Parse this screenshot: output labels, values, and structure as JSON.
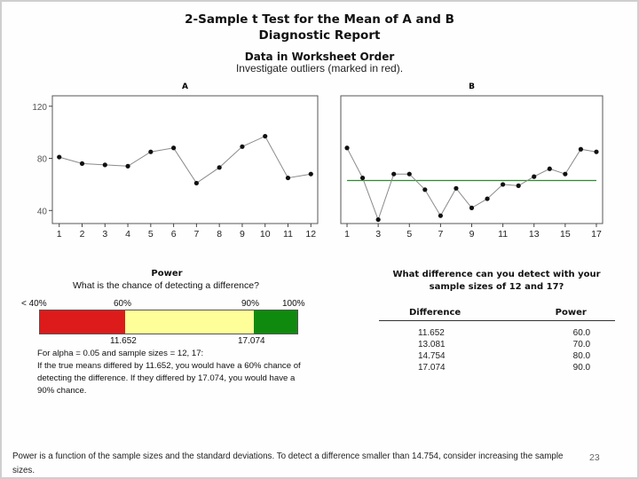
{
  "report": {
    "title_line1": "2-Sample t Test for the Mean of A and B",
    "title_line2": "Diagnostic Report",
    "section_title": "Data in Worksheet Order",
    "section_note": "Investigate outliers (marked in red)."
  },
  "chart_data": [
    {
      "type": "line",
      "title": "A",
      "x": [
        1,
        2,
        3,
        4,
        5,
        6,
        7,
        8,
        9,
        10,
        11,
        12
      ],
      "values": [
        81,
        76,
        75,
        74,
        85,
        88,
        61,
        73,
        89,
        97,
        65,
        68
      ],
      "xticks": [
        "1",
        "2",
        "3",
        "4",
        "5",
        "6",
        "7",
        "8",
        "9",
        "10",
        "11",
        "12"
      ],
      "yticks": [
        "40",
        "80",
        "120"
      ],
      "ylim": [
        30,
        128
      ],
      "line_color": "#8a8a8a",
      "marker_color": "#111111"
    },
    {
      "type": "line",
      "title": "B",
      "x": [
        1,
        2,
        3,
        4,
        5,
        6,
        7,
        8,
        9,
        10,
        11,
        12,
        13,
        14,
        15,
        16,
        17
      ],
      "values": [
        88,
        65,
        33,
        68,
        68,
        56,
        36,
        57,
        42,
        49,
        60,
        59,
        66,
        72,
        68,
        87,
        85
      ],
      "xticks": [
        "1",
        "3",
        "5",
        "7",
        "9",
        "11",
        "13",
        "15",
        "17"
      ],
      "ylim": [
        30,
        128
      ],
      "reference_line": 63,
      "reference_color": "#2e8b2e",
      "line_color": "#8a8a8a",
      "marker_color": "#111111"
    }
  ],
  "power": {
    "heading": "Power",
    "question": "What is the chance of detecting a difference?",
    "scale_labels": [
      "< 40%",
      "60%",
      "90%",
      "100%"
    ],
    "segments": [
      {
        "from": 0,
        "to": 0.33,
        "color": "#dd1b1b"
      },
      {
        "from": 0.33,
        "to": 0.83,
        "color": "#ffff99"
      },
      {
        "from": 0.83,
        "to": 1.0,
        "color": "#0f8a0f"
      }
    ],
    "tick_values": [
      "11.652",
      "17.074"
    ],
    "explanation_1": "For alpha = 0.05 and sample sizes = 12, 17:",
    "explanation_2": "If the true means differed by 11.652, you would have a 60% chance of detecting the difference. If they differed by 17.074, you would have a 90% chance."
  },
  "difference_table": {
    "question": "What difference can you detect with your sample sizes of 12 and 17?",
    "headers": [
      "Difference",
      "Power"
    ],
    "rows": [
      [
        "11.652",
        "60.0"
      ],
      [
        "13.081",
        "70.0"
      ],
      [
        "14.754",
        "80.0"
      ],
      [
        "17.074",
        "90.0"
      ]
    ]
  },
  "footer": {
    "note": "Power is a function of the sample sizes and the standard deviations. To detect a difference smaller than 14.754, consider increasing the sample sizes.",
    "page_number": "23"
  }
}
